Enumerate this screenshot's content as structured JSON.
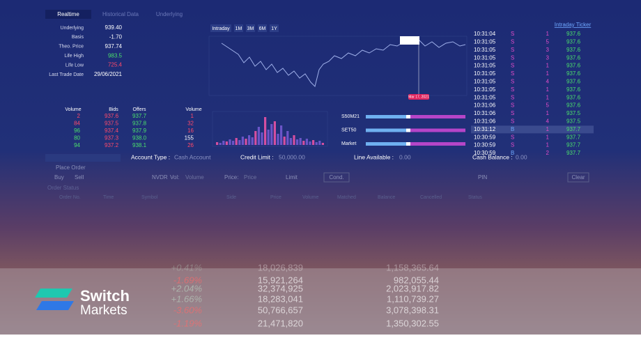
{
  "tabs": [
    "Realtime",
    "Historical Data",
    "Underlying"
  ],
  "info": [
    {
      "label": "Underlying",
      "value": "939.40"
    },
    {
      "label": "Basis",
      "value": "-1.70"
    },
    {
      "label": "Theo. Price",
      "value": "937.74"
    },
    {
      "label": "Life High",
      "value": "983.5"
    },
    {
      "label": "Life Low",
      "value": "725.4"
    },
    {
      "label": "Last Trade Date",
      "value": "29/06/2021"
    }
  ],
  "chart": {
    "ranges": [
      "Intraday",
      "1M",
      "3M",
      "6M",
      "1Y"
    ],
    "tooltip_date": "Mar 17, 2021"
  },
  "order_book": {
    "headers": [
      "Volume",
      "Bids",
      "Offers",
      "Volume"
    ],
    "rows": [
      [
        "2",
        "937.6",
        "937.7",
        "1"
      ],
      [
        "84",
        "937.5",
        "937.8",
        "32"
      ],
      [
        "96",
        "937.4",
        "937.9",
        "16"
      ],
      [
        "80",
        "937.3",
        "938.0",
        "155"
      ],
      [
        "94",
        "937.2",
        "938.1",
        "26"
      ]
    ]
  },
  "pressure": [
    "S50M21",
    "SET50",
    "Market"
  ],
  "ticker": {
    "title": "Intraday Ticker",
    "rows": [
      [
        "10:31:04",
        "S",
        "1",
        "937.6"
      ],
      [
        "10:31:05",
        "S",
        "5",
        "937.6"
      ],
      [
        "10:31:05",
        "S",
        "3",
        "937.6"
      ],
      [
        "10:31:05",
        "S",
        "3",
        "937.6"
      ],
      [
        "10:31:05",
        "S",
        "1",
        "937.6"
      ],
      [
        "10:31:05",
        "S",
        "1",
        "937.6"
      ],
      [
        "10:31:05",
        "S",
        "4",
        "937.6"
      ],
      [
        "10:31:05",
        "S",
        "1",
        "937.6"
      ],
      [
        "10:31:05",
        "S",
        "1",
        "937.6"
      ],
      [
        "10:31:06",
        "S",
        "5",
        "937.6"
      ],
      [
        "10:31:06",
        "S",
        "1",
        "937.5"
      ],
      [
        "10:31:06",
        "S",
        "4",
        "937.5"
      ],
      [
        "10:31:12",
        "B",
        "1",
        "937.7"
      ],
      [
        "10:30:59",
        "S",
        "1",
        "937.7"
      ],
      [
        "10:30:59",
        "S",
        "1",
        "937.7"
      ],
      [
        "10:30:59",
        "B",
        "2",
        "937.7"
      ]
    ]
  },
  "account": [
    {
      "label": "Account Type :",
      "value": "Cash Account"
    },
    {
      "label": "Credit Limit :",
      "value": "50,000.00"
    },
    {
      "label": "Line Available :",
      "value": "0.00"
    },
    {
      "label": "Cash Balance :",
      "value": "0.00"
    }
  ],
  "order_form": {
    "title": "Place Order",
    "buy": "Buy",
    "sell": "Sell",
    "nvdr": "NVDR",
    "vol_label": "Vol:",
    "vol_placeholder": "Volume",
    "price_label": "Price:",
    "price_placeholder": "Price",
    "price_type": "Limit",
    "cond": "Cond.",
    "pin": "PIN",
    "clear": "Clear"
  },
  "order_status": {
    "title": "Order Status",
    "columns": [
      "Order No.",
      "Time",
      "Symbol",
      "Side",
      "Price",
      "Volume",
      "Matched",
      "Balance",
      "Cancelled",
      "Status"
    ]
  },
  "background_figures": [
    [
      "+0.41%",
      "18,026,839",
      "1,158,365.64"
    ],
    [
      "-1.69%",
      "15,921,264",
      "982,055.44"
    ],
    [
      "+2.04%",
      "32,374,925",
      "2,023,917.82"
    ],
    [
      "+1.66%",
      "18,283,041",
      "1,110,739.27"
    ],
    [
      "-3.60%",
      "50,766,657",
      "3,078,398.31"
    ],
    [
      "-1.19%",
      "21,471,820",
      "1,350,302.55"
    ]
  ],
  "brand": {
    "line1": "Switch",
    "line2": "Markets"
  }
}
